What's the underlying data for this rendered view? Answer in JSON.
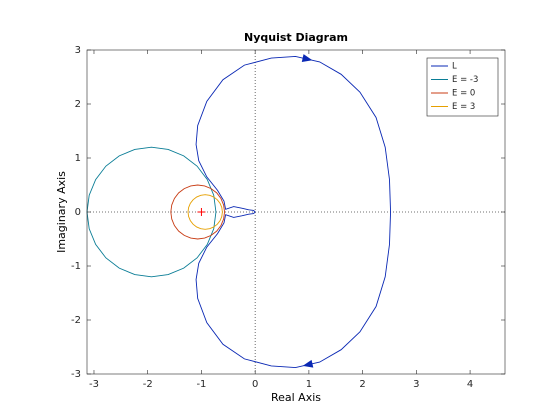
{
  "chart_data": {
    "type": "line",
    "title": "Nyquist Diagram",
    "xlabel": "Real Axis",
    "ylabel": "Imaginary Axis",
    "xlim": [
      -3.13,
      4.65
    ],
    "ylim": [
      -3,
      3
    ],
    "xticks": [
      -3,
      -2,
      -1,
      0,
      1,
      2,
      3,
      4
    ],
    "yticks": [
      -3,
      -2,
      -1,
      0,
      1,
      2,
      3
    ],
    "grid": false,
    "legend": "northeast",
    "critical_point": {
      "x": -1,
      "y": 0,
      "color": "#ff0000"
    },
    "series": [
      {
        "name": "L",
        "color": "#0a28b4",
        "x": [
          0,
          -0.03,
          -0.12,
          -0.25,
          -0.4,
          -0.55,
          -0.58,
          -0.7,
          -0.9,
          -1.05,
          -1.1,
          -1.07,
          -0.9,
          -0.6,
          -0.2,
          0.3,
          0.75,
          1.2,
          1.6,
          1.95,
          2.25,
          2.42,
          2.5,
          2.52,
          2.5,
          2.42,
          2.25,
          1.95,
          1.6,
          1.2,
          0.75,
          0.3,
          -0.2,
          -0.6,
          -0.9,
          -1.07,
          -1.1,
          -1.05,
          -0.9,
          -0.7,
          -0.58,
          -0.55,
          -0.4,
          -0.25,
          -0.12,
          -0.03,
          0
        ],
        "values": [
          0,
          0.03,
          0.04,
          0.07,
          0.1,
          0.05,
          0.2,
          0.4,
          0.65,
          0.95,
          1.25,
          1.6,
          2.05,
          2.45,
          2.72,
          2.85,
          2.88,
          2.78,
          2.55,
          2.22,
          1.75,
          1.2,
          0.6,
          0,
          -0.6,
          -1.2,
          -1.75,
          -2.22,
          -2.55,
          -2.78,
          -2.88,
          -2.85,
          -2.72,
          -2.45,
          -2.05,
          -1.6,
          -1.25,
          -0.95,
          -0.65,
          -0.4,
          -0.2,
          -0.05,
          -0.1,
          -0.07,
          -0.04,
          -0.03,
          0
        ]
      },
      {
        "name": "E = -3",
        "color": "#0a7d96",
        "x": [
          -0.73,
          -0.771,
          -0.891,
          -1.081,
          -1.33,
          -1.619,
          -1.93,
          -2.241,
          -2.53,
          -2.779,
          -2.969,
          -3.089,
          -3.13,
          -3.089,
          -2.969,
          -2.779,
          -2.53,
          -2.241,
          -1.93,
          -1.619,
          -1.33,
          -1.081,
          -0.891,
          -0.771,
          -0.73
        ],
        "values": [
          0,
          0.311,
          0.6,
          0.849,
          1.039,
          1.159,
          1.2,
          1.159,
          1.039,
          0.849,
          0.6,
          0.311,
          0,
          -0.311,
          -0.6,
          -0.849,
          -1.039,
          -1.159,
          -1.2,
          -1.159,
          -1.039,
          -0.849,
          -0.6,
          -0.311,
          0
        ]
      },
      {
        "name": "E = 0",
        "color": "#c83c14",
        "x": [
          -0.57,
          -0.587,
          -0.637,
          -0.716,
          -0.82,
          -0.941,
          -1.07,
          -1.199,
          -1.32,
          -1.424,
          -1.503,
          -1.553,
          -1.57,
          -1.553,
          -1.503,
          -1.424,
          -1.32,
          -1.199,
          -1.07,
          -0.941,
          -0.82,
          -0.716,
          -0.637,
          -0.587,
          -0.57
        ],
        "values": [
          0,
          0.129,
          0.25,
          0.354,
          0.433,
          0.483,
          0.5,
          0.483,
          0.433,
          0.354,
          0.25,
          0.129,
          0,
          -0.129,
          -0.25,
          -0.354,
          -0.433,
          -0.483,
          -0.5,
          -0.483,
          -0.433,
          -0.354,
          -0.25,
          -0.129,
          0
        ]
      },
      {
        "name": "E = 3",
        "color": "#e6a000",
        "x": [
          -0.61,
          -0.621,
          -0.653,
          -0.704,
          -0.77,
          -0.847,
          -0.93,
          -1.013,
          -1.09,
          -1.156,
          -1.207,
          -1.239,
          -1.25,
          -1.239,
          -1.207,
          -1.156,
          -1.09,
          -1.013,
          -0.93,
          -0.847,
          -0.77,
          -0.704,
          -0.653,
          -0.621,
          -0.61
        ],
        "values": [
          0,
          0.083,
          0.16,
          0.226,
          0.277,
          0.309,
          0.32,
          0.309,
          0.277,
          0.226,
          0.16,
          0.083,
          0,
          -0.083,
          -0.16,
          -0.226,
          -0.277,
          -0.309,
          -0.32,
          -0.309,
          -0.277,
          -0.226,
          -0.16,
          -0.083,
          0
        ]
      }
    ]
  }
}
